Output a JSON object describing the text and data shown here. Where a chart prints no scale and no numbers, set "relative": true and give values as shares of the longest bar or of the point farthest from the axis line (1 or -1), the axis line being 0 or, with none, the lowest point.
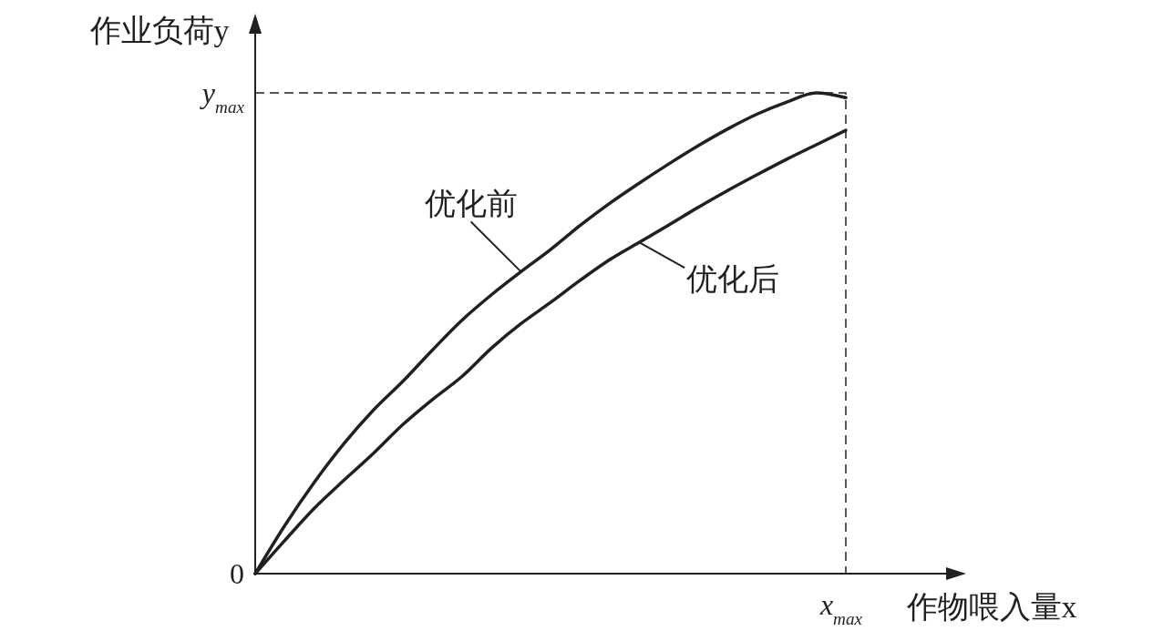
{
  "chart_data": {
    "type": "line",
    "xlabel": "作物喂入量x",
    "ylabel": "作业负荷y",
    "relative": true,
    "categories": [
      null,
      null,
      null,
      null,
      null,
      null,
      null,
      null,
      null,
      null,
      null,
      null,
      null,
      null,
      null,
      null,
      null,
      null,
      null,
      null,
      null
    ],
    "annotations": [
      "0",
      "x$_{max}$"
    ],
    "ref_lines": [
      {
        "axis": "y",
        "value": 1,
        "label": "y$_{max}$",
        "line_style": "dashed"
      }
    ],
    "marker": "none",
    "line_style": "solid",
    "series": [
      {
        "name": "优化前",
        "color": "#231f20",
        "values": [
          0,
          0.1,
          0.19,
          0.27,
          0.34,
          0.4,
          0.465,
          0.527,
          0.58,
          0.628,
          0.674,
          0.724,
          0.77,
          0.812,
          0.852,
          0.89,
          0.925,
          0.956,
          0.981,
          1.0,
          0.99
        ]
      },
      {
        "name": "优化后",
        "color": "#231f20",
        "values": [
          0,
          0.069,
          0.136,
          0.194,
          0.25,
          0.31,
          0.362,
          0.41,
          0.469,
          0.52,
          0.564,
          0.61,
          0.653,
          0.689,
          0.725,
          0.762,
          0.797,
          0.83,
          0.862,
          0.892,
          0.922
        ]
      }
    ]
  }
}
